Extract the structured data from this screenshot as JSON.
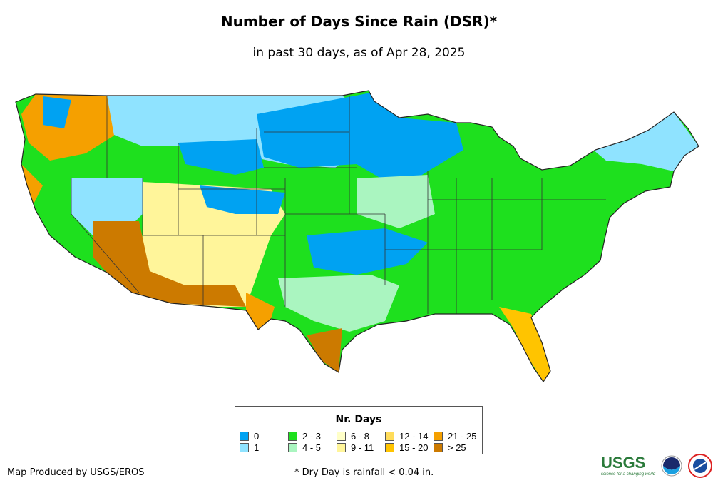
{
  "title": "Number of Days Since Rain (DSR)*",
  "subtitle": "in past 30 days, as of Apr 28, 2025",
  "legend": {
    "title": "Nr. Days",
    "items": [
      {
        "label": "0",
        "color": "#00a2f2"
      },
      {
        "label": "1",
        "color": "#8fe3ff"
      },
      {
        "label": "2 - 3",
        "color": "#1ee01e"
      },
      {
        "label": "4 - 5",
        "color": "#aaf5c0"
      },
      {
        "label": "6 - 8",
        "color": "#ffffc8"
      },
      {
        "label": "9 - 11",
        "color": "#fff59a"
      },
      {
        "label": "12 - 14",
        "color": "#ffdc5a"
      },
      {
        "label": "15 - 20",
        "color": "#ffc400"
      },
      {
        "label": "21 - 25",
        "color": "#f5a000"
      },
      {
        "label": "> 25",
        "color": "#cc7a00"
      }
    ]
  },
  "footer": {
    "credit": "Map Produced by USGS/EROS",
    "note": "* Dry Day is rainfall < 0.04 in."
  },
  "logos": {
    "usgs": "USGS",
    "usgs_tagline": "science for a changing world",
    "noaa": "NOAA",
    "nws": "National Weather Service"
  }
}
